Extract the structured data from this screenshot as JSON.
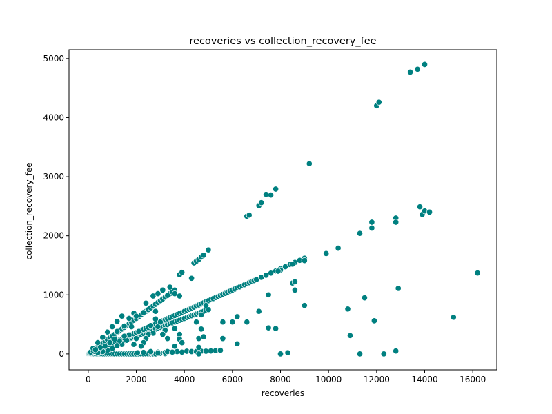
{
  "chart_data": {
    "type": "scatter",
    "title": "recoveries vs collection_recovery_fee",
    "xlabel": "recoveries",
    "ylabel": "collection_recovery_fee",
    "xlim": [
      -800,
      17000
    ],
    "ylim": [
      -270,
      5150
    ],
    "xticks": [
      0,
      2000,
      4000,
      6000,
      8000,
      10000,
      12000,
      14000,
      16000
    ],
    "yticks": [
      0,
      1000,
      2000,
      3000,
      4000,
      5000
    ],
    "grid": false,
    "legend": "none",
    "marker_color": "#008080",
    "edge_color": "#ffffff",
    "points": [
      [
        0,
        0
      ],
      [
        30,
        0
      ],
      [
        60,
        0
      ],
      [
        100,
        0
      ],
      [
        150,
        0
      ],
      [
        200,
        0
      ],
      [
        260,
        0
      ],
      [
        320,
        0
      ],
      [
        380,
        0
      ],
      [
        440,
        0
      ],
      [
        500,
        0
      ],
      [
        560,
        0
      ],
      [
        620,
        0
      ],
      [
        700,
        0
      ],
      [
        780,
        0
      ],
      [
        860,
        0
      ],
      [
        940,
        0
      ],
      [
        1020,
        0
      ],
      [
        1100,
        0
      ],
      [
        1200,
        0
      ],
      [
        1300,
        0
      ],
      [
        1400,
        0
      ],
      [
        1500,
        0
      ],
      [
        1600,
        0
      ],
      [
        1700,
        0
      ],
      [
        1800,
        0
      ],
      [
        1900,
        0
      ],
      [
        2000,
        0
      ],
      [
        2100,
        0
      ],
      [
        2200,
        0
      ],
      [
        2300,
        0
      ],
      [
        2400,
        0
      ],
      [
        2500,
        0
      ],
      [
        2600,
        0
      ],
      [
        2700,
        0
      ],
      [
        2800,
        0
      ],
      [
        3000,
        10
      ],
      [
        3200,
        5
      ],
      [
        2050,
        20
      ],
      [
        2300,
        25
      ],
      [
        2600,
        20
      ],
      [
        2900,
        30
      ],
      [
        3200,
        25
      ],
      [
        3500,
        35
      ],
      [
        3700,
        40
      ],
      [
        3900,
        30
      ],
      [
        4100,
        45
      ],
      [
        4300,
        40
      ],
      [
        4500,
        40
      ],
      [
        4700,
        45
      ],
      [
        4900,
        45
      ],
      [
        5100,
        50
      ],
      [
        5300,
        55
      ],
      [
        5500,
        60
      ],
      [
        4600,
        0
      ],
      [
        50,
        10
      ],
      [
        100,
        15
      ],
      [
        150,
        22
      ],
      [
        200,
        30
      ],
      [
        250,
        37
      ],
      [
        300,
        45
      ],
      [
        350,
        52
      ],
      [
        400,
        60
      ],
      [
        450,
        67
      ],
      [
        500,
        75
      ],
      [
        550,
        82
      ],
      [
        600,
        90
      ],
      [
        650,
        97
      ],
      [
        700,
        105
      ],
      [
        800,
        120
      ],
      [
        900,
        135
      ],
      [
        1000,
        150
      ],
      [
        1100,
        165
      ],
      [
        1200,
        180
      ],
      [
        1300,
        195
      ],
      [
        1400,
        210
      ],
      [
        1500,
        225
      ],
      [
        1600,
        240
      ],
      [
        1700,
        255
      ],
      [
        1800,
        270
      ],
      [
        1900,
        285
      ],
      [
        2000,
        300
      ],
      [
        2100,
        315
      ],
      [
        2200,
        330
      ],
      [
        2300,
        345
      ],
      [
        2400,
        360
      ],
      [
        2500,
        375
      ],
      [
        2600,
        390
      ],
      [
        2700,
        405
      ],
      [
        2800,
        420
      ],
      [
        2900,
        435
      ],
      [
        3000,
        450
      ],
      [
        3100,
        465
      ],
      [
        3200,
        480
      ],
      [
        3300,
        495
      ],
      [
        3400,
        510
      ],
      [
        3500,
        525
      ],
      [
        3600,
        540
      ],
      [
        3700,
        555
      ],
      [
        3800,
        570
      ],
      [
        3900,
        585
      ],
      [
        4000,
        600
      ],
      [
        4100,
        615
      ],
      [
        4200,
        630
      ],
      [
        4300,
        645
      ],
      [
        4400,
        660
      ],
      [
        4500,
        675
      ],
      [
        4600,
        690
      ],
      [
        4700,
        705
      ],
      [
        4800,
        720
      ],
      [
        4900,
        735
      ],
      [
        5000,
        750
      ],
      [
        80,
        14
      ],
      [
        160,
        29
      ],
      [
        240,
        43
      ],
      [
        320,
        58
      ],
      [
        400,
        72
      ],
      [
        480,
        86
      ],
      [
        560,
        101
      ],
      [
        640,
        115
      ],
      [
        720,
        130
      ],
      [
        800,
        144
      ],
      [
        880,
        158
      ],
      [
        960,
        173
      ],
      [
        1040,
        187
      ],
      [
        1120,
        202
      ],
      [
        1200,
        216
      ],
      [
        1300,
        234
      ],
      [
        1400,
        252
      ],
      [
        1500,
        270
      ],
      [
        1600,
        288
      ],
      [
        1700,
        306
      ],
      [
        1800,
        324
      ],
      [
        1900,
        342
      ],
      [
        2000,
        360
      ],
      [
        2100,
        378
      ],
      [
        2200,
        396
      ],
      [
        2300,
        414
      ],
      [
        2400,
        432
      ],
      [
        2500,
        450
      ],
      [
        2600,
        468
      ],
      [
        2700,
        486
      ],
      [
        2800,
        504
      ],
      [
        2900,
        522
      ],
      [
        3000,
        540
      ],
      [
        3100,
        558
      ],
      [
        3200,
        576
      ],
      [
        3300,
        594
      ],
      [
        3400,
        612
      ],
      [
        3500,
        630
      ],
      [
        3600,
        648
      ],
      [
        3700,
        666
      ],
      [
        3800,
        684
      ],
      [
        3900,
        702
      ],
      [
        4000,
        720
      ],
      [
        4100,
        738
      ],
      [
        4200,
        756
      ],
      [
        4300,
        774
      ],
      [
        4400,
        792
      ],
      [
        4500,
        810
      ],
      [
        4600,
        828
      ],
      [
        4700,
        846
      ],
      [
        4800,
        864
      ],
      [
        4900,
        882
      ],
      [
        5000,
        900
      ],
      [
        5100,
        918
      ],
      [
        5200,
        936
      ],
      [
        5300,
        954
      ],
      [
        5400,
        972
      ],
      [
        5500,
        990
      ],
      [
        5600,
        1008
      ],
      [
        5700,
        1026
      ],
      [
        5800,
        1044
      ],
      [
        5900,
        1062
      ],
      [
        6000,
        1080
      ],
      [
        6100,
        1098
      ],
      [
        6200,
        1116
      ],
      [
        6300,
        1134
      ],
      [
        6400,
        1152
      ],
      [
        6500,
        1170
      ],
      [
        6600,
        1188
      ],
      [
        6700,
        1206
      ],
      [
        6800,
        1224
      ],
      [
        6900,
        1242
      ],
      [
        7000,
        1260
      ],
      [
        7200,
        1296
      ],
      [
        7400,
        1332
      ],
      [
        7600,
        1368
      ],
      [
        7800,
        1404
      ],
      [
        8000,
        1440
      ],
      [
        8200,
        1476
      ],
      [
        8400,
        1512
      ],
      [
        8600,
        1548
      ],
      [
        8800,
        1584
      ],
      [
        9000,
        1620
      ],
      [
        9000,
        1580
      ],
      [
        8500,
        1520
      ],
      [
        8000,
        1420
      ],
      [
        7900,
        1400
      ],
      [
        100,
        30
      ],
      [
        200,
        60
      ],
      [
        300,
        90
      ],
      [
        400,
        120
      ],
      [
        500,
        150
      ],
      [
        600,
        180
      ],
      [
        700,
        210
      ],
      [
        800,
        240
      ],
      [
        900,
        270
      ],
      [
        1000,
        300
      ],
      [
        1100,
        330
      ],
      [
        1200,
        360
      ],
      [
        1300,
        390
      ],
      [
        1400,
        420
      ],
      [
        1500,
        450
      ],
      [
        1600,
        480
      ],
      [
        1700,
        510
      ],
      [
        1800,
        540
      ],
      [
        1900,
        570
      ],
      [
        2000,
        600
      ],
      [
        2100,
        630
      ],
      [
        2200,
        660
      ],
      [
        2300,
        690
      ],
      [
        2400,
        720
      ],
      [
        2500,
        750
      ],
      [
        2600,
        780
      ],
      [
        2700,
        810
      ],
      [
        2800,
        840
      ],
      [
        2900,
        870
      ],
      [
        3000,
        900
      ],
      [
        3100,
        930
      ],
      [
        3200,
        960
      ],
      [
        3300,
        990
      ],
      [
        3400,
        1020
      ],
      [
        3500,
        1050
      ],
      [
        3600,
        1080
      ],
      [
        2300,
        700
      ],
      [
        2000,
        640
      ],
      [
        1500,
        470
      ],
      [
        1200,
        380
      ],
      [
        200,
        95
      ],
      [
        400,
        190
      ],
      [
        600,
        280
      ],
      [
        800,
        370
      ],
      [
        1000,
        460
      ],
      [
        1200,
        550
      ],
      [
        1400,
        640
      ],
      [
        1700,
        600
      ],
      [
        1900,
        690
      ],
      [
        2000,
        640
      ],
      [
        2400,
        860
      ],
      [
        2700,
        980
      ],
      [
        2900,
        1020
      ],
      [
        3100,
        1080
      ],
      [
        3300,
        990
      ],
      [
        3600,
        1020
      ],
      [
        3800,
        980
      ],
      [
        3400,
        1130
      ],
      [
        3800,
        1340
      ],
      [
        3900,
        1380
      ],
      [
        4300,
        1280
      ],
      [
        4400,
        1540
      ],
      [
        4500,
        1570
      ],
      [
        4600,
        1600
      ],
      [
        4700,
        1640
      ],
      [
        4800,
        1670
      ],
      [
        5000,
        1760
      ],
      [
        6600,
        2330
      ],
      [
        6700,
        2350
      ],
      [
        7100,
        2510
      ],
      [
        7200,
        2560
      ],
      [
        7400,
        2700
      ],
      [
        7600,
        2690
      ],
      [
        7800,
        2790
      ],
      [
        9200,
        3220
      ],
      [
        12000,
        4200
      ],
      [
        12100,
        4260
      ],
      [
        13400,
        4770
      ],
      [
        13700,
        4820
      ],
      [
        14000,
        4900
      ],
      [
        9900,
        1700
      ],
      [
        10400,
        1790
      ],
      [
        11300,
        2040
      ],
      [
        11800,
        2130
      ],
      [
        11800,
        2230
      ],
      [
        12800,
        2300
      ],
      [
        12800,
        2230
      ],
      [
        13800,
        2490
      ],
      [
        13900,
        2360
      ],
      [
        14000,
        2420
      ],
      [
        14200,
        2400
      ],
      [
        16200,
        1370
      ],
      [
        12900,
        1110
      ],
      [
        11500,
        950
      ],
      [
        10800,
        760
      ],
      [
        11900,
        560
      ],
      [
        10900,
        310
      ],
      [
        12800,
        50
      ],
      [
        12300,
        0
      ],
      [
        11300,
        0
      ],
      [
        15200,
        620
      ],
      [
        9000,
        820
      ],
      [
        8600,
        1080
      ],
      [
        8500,
        1200
      ],
      [
        8600,
        1220
      ],
      [
        7500,
        1000
      ],
      [
        7500,
        440
      ],
      [
        7800,
        430
      ],
      [
        7100,
        720
      ],
      [
        6200,
        630
      ],
      [
        6600,
        540
      ],
      [
        6000,
        540
      ],
      [
        5600,
        540
      ],
      [
        5600,
        260
      ],
      [
        6200,
        170
      ],
      [
        8000,
        0
      ],
      [
        8300,
        20
      ],
      [
        4500,
        540
      ],
      [
        4600,
        260
      ],
      [
        4700,
        420
      ],
      [
        4600,
        110
      ],
      [
        4800,
        290
      ],
      [
        4900,
        820
      ],
      [
        4700,
        660
      ],
      [
        3800,
        330
      ],
      [
        3800,
        250
      ],
      [
        3900,
        190
      ],
      [
        3600,
        430
      ],
      [
        3600,
        130
      ],
      [
        3300,
        260
      ],
      [
        3200,
        400
      ],
      [
        3100,
        330
      ],
      [
        2900,
        460
      ],
      [
        2800,
        720
      ],
      [
        2800,
        590
      ],
      [
        3000,
        540
      ],
      [
        2600,
        480
      ],
      [
        2700,
        350
      ],
      [
        2500,
        330
      ],
      [
        2400,
        260
      ],
      [
        2300,
        190
      ],
      [
        2200,
        130
      ],
      [
        2100,
        380
      ],
      [
        2000,
        260
      ],
      [
        1900,
        160
      ],
      [
        1800,
        460
      ],
      [
        1700,
        320
      ],
      [
        1600,
        230
      ],
      [
        1500,
        300
      ],
      [
        1400,
        160
      ],
      [
        1300,
        220
      ],
      [
        1200,
        140
      ],
      [
        1100,
        250
      ],
      [
        1000,
        90
      ],
      [
        900,
        190
      ],
      [
        800,
        60
      ],
      [
        700,
        130
      ],
      [
        600,
        40
      ],
      [
        500,
        110
      ],
      [
        400,
        20
      ],
      [
        300,
        70
      ],
      [
        2600,
        40
      ],
      [
        2900,
        15
      ],
      [
        3300,
        40
      ],
      [
        3500,
        30
      ]
    ]
  }
}
